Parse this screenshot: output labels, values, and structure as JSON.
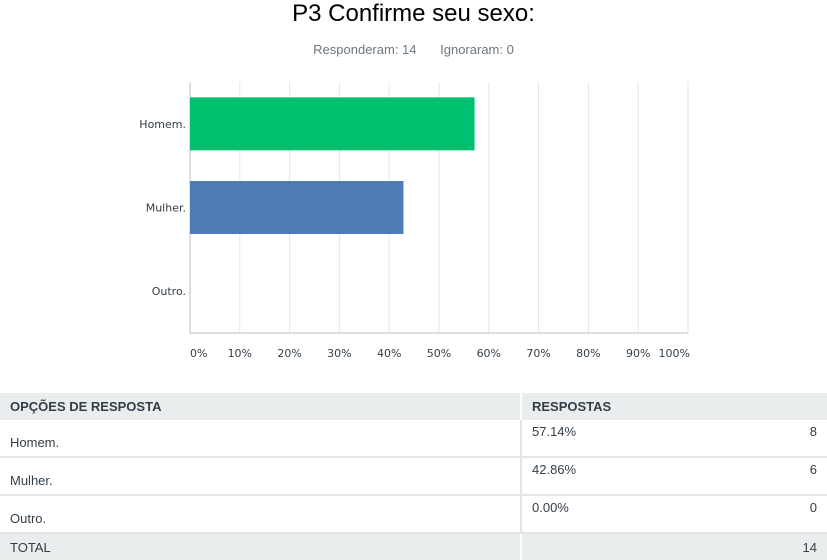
{
  "title": "P3 Confirme seu sexo:",
  "summary": {
    "answered": "Responderam: 14",
    "skipped": "Ignoraram: 0"
  },
  "chart_data": {
    "type": "bar",
    "orientation": "horizontal",
    "categories": [
      "Homem.",
      "Mulher.",
      "Outro."
    ],
    "values": [
      57.14,
      42.86,
      0.0
    ],
    "colors": [
      "#00bf6f",
      "#507cb6",
      "#f9be00"
    ],
    "xlim": [
      0,
      100
    ],
    "xticks": [
      "0%",
      "10%",
      "20%",
      "30%",
      "40%",
      "50%",
      "60%",
      "70%",
      "80%",
      "90%",
      "100%"
    ],
    "grid": true
  },
  "table": {
    "headers": {
      "option": "OPÇÕES DE RESPOSTA",
      "responses": "RESPOSTAS"
    },
    "rows": [
      {
        "option": "Homem.",
        "percent": "57.14%",
        "count": "8"
      },
      {
        "option": "Mulher.",
        "percent": "42.86%",
        "count": "6"
      },
      {
        "option": "Outro.",
        "percent": "0.00%",
        "count": "0"
      }
    ],
    "total": {
      "label": "TOTAL",
      "count": "14"
    }
  }
}
